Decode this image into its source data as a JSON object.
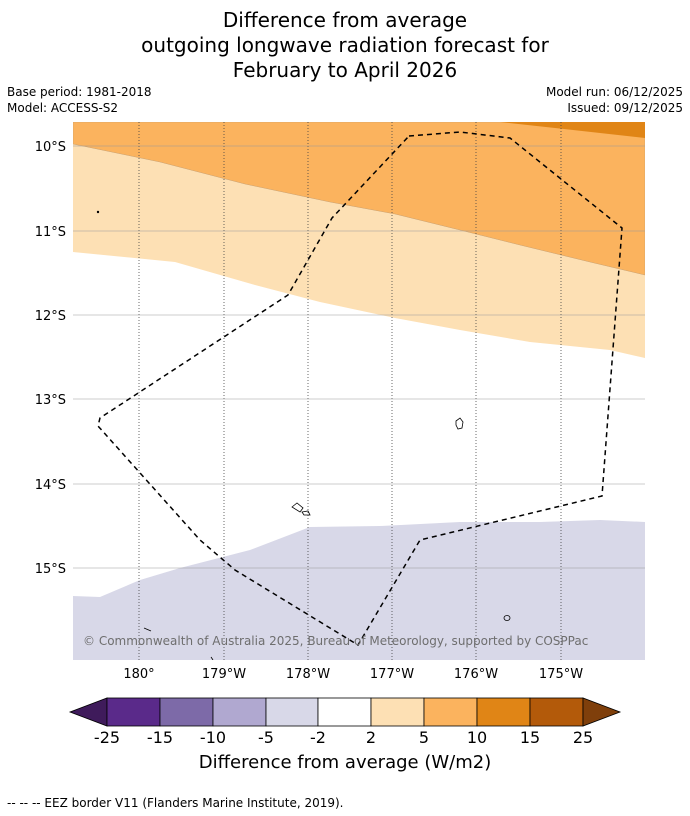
{
  "title": {
    "line1": "Difference from average",
    "line2": "outgoing longwave radiation forecast for",
    "line3": "February to April 2026"
  },
  "meta": {
    "base_period": "Base period: 1981-2018",
    "model": "Model: ACCESS-S2",
    "model_run": "Model run: 06/12/2025",
    "issued": "Issued: 09/12/2025"
  },
  "map": {
    "lat_labels": [
      "10°S",
      "11°S",
      "12°S",
      "13°S",
      "14°S",
      "15°S"
    ],
    "lon_labels": [
      "180°",
      "179°W",
      "178°W",
      "177°W",
      "176°W",
      "175°W"
    ],
    "copyright": "© Commonwealth of Australia 2025, Bureau of Meteorology, supported by COSPPac"
  },
  "colorbar": {
    "tick_labels": [
      "-25",
      "-15",
      "-10",
      "-5",
      "-2",
      "2",
      "5",
      "10",
      "15",
      "25"
    ],
    "colors": [
      "#3f1b5b",
      "#5a2a8a",
      "#7d6aa8",
      "#b0a8d0",
      "#d8d8e8",
      "#ffffff",
      "#fde0b4",
      "#fbb35e",
      "#e08516",
      "#b35a0a",
      "#7f3f0b"
    ],
    "label": "Difference from average (W/m2)"
  },
  "footer": {
    "eez_note": "--  --  -- EEZ border V11 (Flanders Marine Institute, 2019)."
  }
}
